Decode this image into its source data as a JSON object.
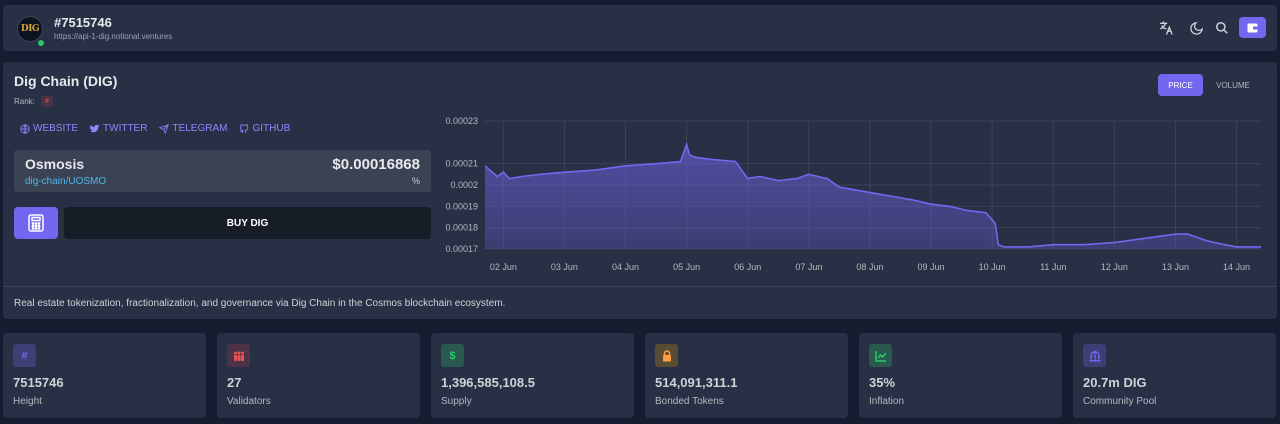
{
  "header": {
    "logo_text": "DIG",
    "title": "#7515746",
    "url": "https://api-1-dig.notional.ventures",
    "icons": [
      "translate-icon",
      "moon-icon",
      "search-icon",
      "wallet-icon"
    ]
  },
  "coin": {
    "title": "Dig Chain (DIG)",
    "rank_label": "Rank:",
    "rank_value": "#",
    "links": [
      {
        "label": "WEBSITE",
        "icon": "globe-icon"
      },
      {
        "label": "TWITTER",
        "icon": "twitter-icon"
      },
      {
        "label": "TELEGRAM",
        "icon": "telegram-icon"
      },
      {
        "label": "GITHUB",
        "icon": "github-icon"
      }
    ],
    "ticker": {
      "market": "Osmosis",
      "pair": "dig-chain/UOSMO",
      "price": "$0.00016868",
      "change": "%"
    },
    "buy_label": "BUY DIG",
    "description": "Real estate tokenization, fractionalization, and governance via Dig Chain in the Cosmos blockchain ecosystem."
  },
  "chart_toggle": {
    "price_label": "PRICE",
    "volume_label": "VOLUME"
  },
  "chart_data": {
    "type": "area",
    "x_ticks": [
      "02 Jun",
      "03 Jun",
      "04 Jun",
      "05 Jun",
      "06 Jun",
      "07 Jun",
      "08 Jun",
      "09 Jun",
      "10 Jun",
      "11 Jun",
      "12 Jun",
      "13 Jun",
      "14 Jun"
    ],
    "y_ticks": [
      "0.00023",
      "0.00021",
      "0.0002",
      "0.00019",
      "0.00018",
      "0.00017"
    ],
    "ylim": [
      0.00017,
      0.00023
    ],
    "xlim": [
      1.7,
      14.4
    ],
    "series": [
      {
        "x": [
          1.7,
          1.9,
          2.0,
          2.1,
          2.3,
          2.6,
          3.0,
          3.5,
          4.0,
          4.5,
          4.9,
          5.0,
          5.05,
          5.15,
          5.4,
          5.8,
          6.0,
          6.2,
          6.5,
          6.8,
          7.0,
          7.3,
          7.5,
          7.7,
          7.9,
          8.3,
          8.7,
          9.0,
          9.3,
          9.6,
          9.9,
          10.05,
          10.1,
          10.2,
          10.6,
          11.0,
          11.5,
          12.0,
          12.5,
          13.0,
          13.2,
          13.5,
          13.8,
          14.0,
          14.2,
          14.4
        ],
        "values": [
          0.000209,
          0.000204,
          0.000206,
          0.000203,
          0.000204,
          0.000205,
          0.000206,
          0.000207,
          0.000209,
          0.00021,
          0.000211,
          0.000219,
          0.000214,
          0.000213,
          0.000212,
          0.000211,
          0.000203,
          0.000204,
          0.000202,
          0.000203,
          0.000205,
          0.000203,
          0.000199,
          0.000198,
          0.000197,
          0.000195,
          0.000193,
          0.000191,
          0.00019,
          0.000188,
          0.000187,
          0.000182,
          0.000172,
          0.000171,
          0.000171,
          0.000172,
          0.000172,
          0.000173,
          0.000175,
          0.000177,
          0.000177,
          0.000174,
          0.000172,
          0.000171,
          0.000171,
          0.000171
        ]
      }
    ]
  },
  "stats": [
    {
      "value": "7515746",
      "label": "Height",
      "icon": "hash-icon",
      "color": "#7367f0"
    },
    {
      "value": "27",
      "label": "Validators",
      "icon": "people-icon",
      "color": "#ea5455"
    },
    {
      "value": "1,396,585,108.5",
      "label": "Supply",
      "icon": "dollar-icon",
      "color": "#28c76f"
    },
    {
      "value": "514,091,311.1",
      "label": "Bonded Tokens",
      "icon": "lock-icon",
      "color": "#ff9f43"
    },
    {
      "value": "35%",
      "label": "Inflation",
      "icon": "chart-icon",
      "color": "#28c76f"
    },
    {
      "value": "20.7m DIG",
      "label": "Community Pool",
      "icon": "bank-icon",
      "color": "#7367f0"
    }
  ]
}
